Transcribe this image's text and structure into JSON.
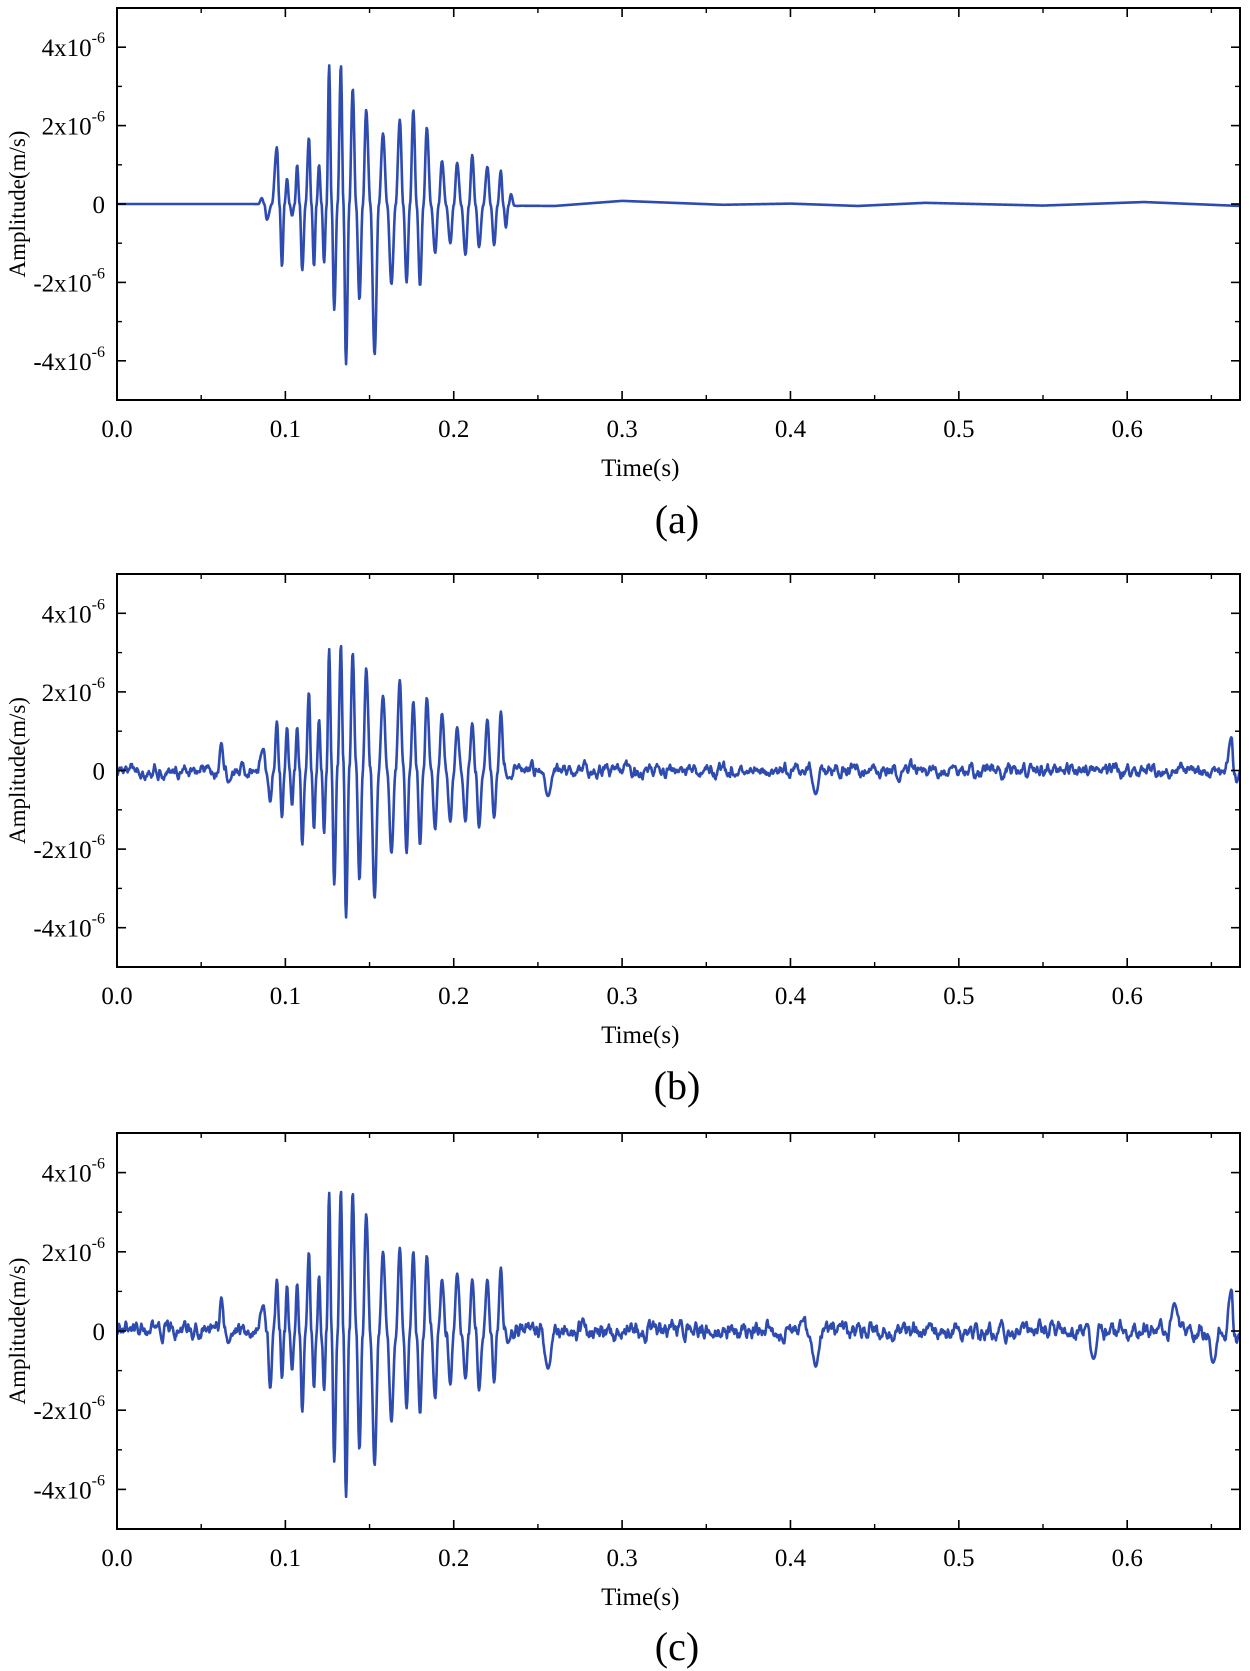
{
  "colors": {
    "line": "#2e4bb0",
    "axis": "#000000",
    "background": "#ffffff"
  },
  "chart_data": [
    {
      "type": "line",
      "panel_label": "(a)",
      "title": "",
      "xlabel": "Time(s)",
      "ylabel": "Amplitude(m/s)",
      "xlim": [
        0.0,
        0.667
      ],
      "ylim": [
        -5e-06,
        5e-06
      ],
      "x_ticks": [
        0.0,
        0.1,
        0.2,
        0.3,
        0.4,
        0.5,
        0.6
      ],
      "x_tick_labels": [
        "0.0",
        "0.1",
        "0.2",
        "0.3",
        "0.4",
        "0.5",
        "0.6"
      ],
      "y_ticks": [
        4e-06,
        2e-06,
        0,
        -2e-06,
        -4e-06
      ],
      "y_tick_labels": [
        {
          "mantissa": "4x10",
          "exponent": "-6"
        },
        {
          "mantissa": "2x10",
          "exponent": "-6"
        },
        {
          "mantissa": "0",
          "exponent": ""
        },
        {
          "mantissa": "-2x10",
          "exponent": "-6"
        },
        {
          "mantissa": "-4x10",
          "exponent": "-6"
        }
      ],
      "grid": false,
      "series": [
        {
          "name": "signal",
          "description": "Clean seismic wave burst between ~0.088 s and ~0.235 s, flat near zero elsewhere",
          "peaks": [
            {
              "t": 0.086,
              "v": 1.5e-07
            },
            {
              "t": 0.089,
              "v": -4e-07
            },
            {
              "t": 0.095,
              "v": 1.45e-06
            },
            {
              "t": 0.098,
              "v": -1.6e-06
            },
            {
              "t": 0.101,
              "v": 6.5e-07
            },
            {
              "t": 0.104,
              "v": -3e-07
            },
            {
              "t": 0.107,
              "v": 1e-06
            },
            {
              "t": 0.11,
              "v": -1.7e-06
            },
            {
              "t": 0.114,
              "v": 1.7e-06
            },
            {
              "t": 0.117,
              "v": -1.6e-06
            },
            {
              "t": 0.12,
              "v": 1e-06
            },
            {
              "t": 0.123,
              "v": -1.5e-06
            },
            {
              "t": 0.126,
              "v": 3.55e-06
            },
            {
              "t": 0.129,
              "v": -2.7e-06
            },
            {
              "t": 0.133,
              "v": 3.55e-06
            },
            {
              "t": 0.136,
              "v": -4.1e-06
            },
            {
              "t": 0.14,
              "v": 2.95e-06
            },
            {
              "t": 0.144,
              "v": -2.45e-06
            },
            {
              "t": 0.148,
              "v": 2.4e-06
            },
            {
              "t": 0.153,
              "v": -3.85e-06
            },
            {
              "t": 0.158,
              "v": 1.8e-06
            },
            {
              "t": 0.163,
              "v": -2.05e-06
            },
            {
              "t": 0.168,
              "v": 2.15e-06
            },
            {
              "t": 0.172,
              "v": -2e-06
            },
            {
              "t": 0.176,
              "v": 2.4e-06
            },
            {
              "t": 0.18,
              "v": -2.1e-06
            },
            {
              "t": 0.184,
              "v": 1.95e-06
            },
            {
              "t": 0.189,
              "v": -1.25e-06
            },
            {
              "t": 0.193,
              "v": 1.1e-06
            },
            {
              "t": 0.198,
              "v": -1e-06
            },
            {
              "t": 0.202,
              "v": 1.05e-06
            },
            {
              "t": 0.207,
              "v": -1.3e-06
            },
            {
              "t": 0.211,
              "v": 1.25e-06
            },
            {
              "t": 0.215,
              "v": -1.1e-06
            },
            {
              "t": 0.22,
              "v": 9.5e-07
            },
            {
              "t": 0.224,
              "v": -1.05e-06
            },
            {
              "t": 0.228,
              "v": 8.5e-07
            },
            {
              "t": 0.231,
              "v": -6e-07
            },
            {
              "t": 0.234,
              "v": 2.5e-07
            },
            {
              "t": 0.238,
              "v": -5e-08
            }
          ],
          "baseline": [
            {
              "t": 0.0,
              "v": 0
            },
            {
              "t": 0.08,
              "v": 0
            },
            {
              "t": 0.26,
              "v": -5e-08
            },
            {
              "t": 0.3,
              "v": 8e-08
            },
            {
              "t": 0.36,
              "v": -2e-08
            },
            {
              "t": 0.4,
              "v": 1e-08
            },
            {
              "t": 0.44,
              "v": -5e-08
            },
            {
              "t": 0.48,
              "v": 3e-08
            },
            {
              "t": 0.55,
              "v": -4e-08
            },
            {
              "t": 0.61,
              "v": 5e-08
            },
            {
              "t": 0.667,
              "v": -5e-08
            }
          ],
          "noise_std": 0
        }
      ]
    },
    {
      "type": "line",
      "panel_label": "(b)",
      "title": "",
      "xlabel": "Time(s)",
      "ylabel": "Amplitude(m/s)",
      "xlim": [
        0.0,
        0.667
      ],
      "ylim": [
        -5e-06,
        5e-06
      ],
      "x_ticks": [
        0.0,
        0.1,
        0.2,
        0.3,
        0.4,
        0.5,
        0.6
      ],
      "x_tick_labels": [
        "0.0",
        "0.1",
        "0.2",
        "0.3",
        "0.4",
        "0.5",
        "0.6"
      ],
      "y_ticks": [
        4e-06,
        2e-06,
        0,
        -2e-06,
        -4e-06
      ],
      "y_tick_labels": [
        {
          "mantissa": "4x10",
          "exponent": "-6"
        },
        {
          "mantissa": "2x10",
          "exponent": "-6"
        },
        {
          "mantissa": "0",
          "exponent": ""
        },
        {
          "mantissa": "-2x10",
          "exponent": "-6"
        },
        {
          "mantissa": "-4x10",
          "exponent": "-6"
        }
      ],
      "grid": false,
      "series": [
        {
          "name": "signal",
          "description": "Wave burst with moderate background noise (~±0.3e-6) across the record",
          "peaks": [
            {
              "t": 0.062,
              "v": 7e-07
            },
            {
              "t": 0.066,
              "v": -3e-07
            },
            {
              "t": 0.087,
              "v": 5.5e-07
            },
            {
              "t": 0.091,
              "v": -8e-07
            },
            {
              "t": 0.095,
              "v": 1.25e-06
            },
            {
              "t": 0.098,
              "v": -1.2e-06
            },
            {
              "t": 0.101,
              "v": 1.1e-06
            },
            {
              "t": 0.104,
              "v": -9e-07
            },
            {
              "t": 0.107,
              "v": 1.1e-06
            },
            {
              "t": 0.11,
              "v": -1.9e-06
            },
            {
              "t": 0.114,
              "v": 2e-06
            },
            {
              "t": 0.117,
              "v": -1.5e-06
            },
            {
              "t": 0.12,
              "v": 1.3e-06
            },
            {
              "t": 0.123,
              "v": -1.6e-06
            },
            {
              "t": 0.126,
              "v": 3.1e-06
            },
            {
              "t": 0.129,
              "v": -2.9e-06
            },
            {
              "t": 0.133,
              "v": 3.2e-06
            },
            {
              "t": 0.136,
              "v": -3.75e-06
            },
            {
              "t": 0.14,
              "v": 3e-06
            },
            {
              "t": 0.144,
              "v": -2.8e-06
            },
            {
              "t": 0.148,
              "v": 2.6e-06
            },
            {
              "t": 0.153,
              "v": -3.25e-06
            },
            {
              "t": 0.158,
              "v": 1.9e-06
            },
            {
              "t": 0.163,
              "v": -2.1e-06
            },
            {
              "t": 0.168,
              "v": 2.3e-06
            },
            {
              "t": 0.172,
              "v": -2.1e-06
            },
            {
              "t": 0.176,
              "v": 1.75e-06
            },
            {
              "t": 0.18,
              "v": -1.9e-06
            },
            {
              "t": 0.184,
              "v": 1.85e-06
            },
            {
              "t": 0.189,
              "v": -1.5e-06
            },
            {
              "t": 0.193,
              "v": 1.45e-06
            },
            {
              "t": 0.198,
              "v": -1.3e-06
            },
            {
              "t": 0.202,
              "v": 1.1e-06
            },
            {
              "t": 0.207,
              "v": -1.3e-06
            },
            {
              "t": 0.211,
              "v": 1.2e-06
            },
            {
              "t": 0.215,
              "v": -1.45e-06
            },
            {
              "t": 0.22,
              "v": 1.3e-06
            },
            {
              "t": 0.224,
              "v": -1.2e-06
            },
            {
              "t": 0.228,
              "v": 1.5e-06
            },
            {
              "t": 0.232,
              "v": -2e-07
            },
            {
              "t": 0.256,
              "v": -6.5e-07
            },
            {
              "t": 0.415,
              "v": -6e-07
            },
            {
              "t": 0.662,
              "v": 8.5e-07
            },
            {
              "t": 0.665,
              "v": -3e-07
            }
          ],
          "baseline": [
            {
              "t": 0.0,
              "v": 0
            },
            {
              "t": 0.667,
              "v": 0
            }
          ],
          "noise_std": 1.7e-07
        }
      ]
    },
    {
      "type": "line",
      "panel_label": "(c)",
      "title": "",
      "xlabel": "Time(s)",
      "ylabel": "Amplitude(m/s)",
      "xlim": [
        0.0,
        0.667
      ],
      "ylim": [
        -5e-06,
        5e-06
      ],
      "x_ticks": [
        0.0,
        0.1,
        0.2,
        0.3,
        0.4,
        0.5,
        0.6
      ],
      "x_tick_labels": [
        "0.0",
        "0.1",
        "0.2",
        "0.3",
        "0.4",
        "0.5",
        "0.6"
      ],
      "y_ticks": [
        4e-06,
        2e-06,
        0,
        -2e-06,
        -4e-06
      ],
      "y_tick_labels": [
        {
          "mantissa": "4x10",
          "exponent": "-6"
        },
        {
          "mantissa": "2x10",
          "exponent": "-6"
        },
        {
          "mantissa": "0",
          "exponent": ""
        },
        {
          "mantissa": "-2x10",
          "exponent": "-6"
        },
        {
          "mantissa": "-4x10",
          "exponent": "-6"
        }
      ],
      "grid": false,
      "series": [
        {
          "name": "signal",
          "description": "Wave burst with stronger background noise (~±0.4e-6) across the record",
          "peaks": [
            {
              "t": 0.062,
              "v": 8.5e-07
            },
            {
              "t": 0.066,
              "v": -3e-07
            },
            {
              "t": 0.087,
              "v": 6.5e-07
            },
            {
              "t": 0.091,
              "v": -1.45e-06
            },
            {
              "t": 0.095,
              "v": 1.3e-06
            },
            {
              "t": 0.098,
              "v": -1.2e-06
            },
            {
              "t": 0.101,
              "v": 1.15e-06
            },
            {
              "t": 0.104,
              "v": -1e-06
            },
            {
              "t": 0.107,
              "v": 1.2e-06
            },
            {
              "t": 0.11,
              "v": -2.05e-06
            },
            {
              "t": 0.114,
              "v": 2e-06
            },
            {
              "t": 0.117,
              "v": -1.45e-06
            },
            {
              "t": 0.12,
              "v": 1.4e-06
            },
            {
              "t": 0.123,
              "v": -1.5e-06
            },
            {
              "t": 0.126,
              "v": 3.5e-06
            },
            {
              "t": 0.129,
              "v": -3.3e-06
            },
            {
              "t": 0.133,
              "v": 3.55e-06
            },
            {
              "t": 0.136,
              "v": -4.2e-06
            },
            {
              "t": 0.14,
              "v": 3.5e-06
            },
            {
              "t": 0.144,
              "v": -3e-06
            },
            {
              "t": 0.148,
              "v": 2.95e-06
            },
            {
              "t": 0.153,
              "v": -3.4e-06
            },
            {
              "t": 0.158,
              "v": 2e-06
            },
            {
              "t": 0.163,
              "v": -2.3e-06
            },
            {
              "t": 0.168,
              "v": 2.1e-06
            },
            {
              "t": 0.172,
              "v": -1.95e-06
            },
            {
              "t": 0.176,
              "v": 2e-06
            },
            {
              "t": 0.18,
              "v": -2.1e-06
            },
            {
              "t": 0.184,
              "v": 1.9e-06
            },
            {
              "t": 0.189,
              "v": -1.7e-06
            },
            {
              "t": 0.193,
              "v": 1.3e-06
            },
            {
              "t": 0.198,
              "v": -1.35e-06
            },
            {
              "t": 0.202,
              "v": 1.45e-06
            },
            {
              "t": 0.207,
              "v": -1.2e-06
            },
            {
              "t": 0.211,
              "v": 1.3e-06
            },
            {
              "t": 0.215,
              "v": -1.5e-06
            },
            {
              "t": 0.22,
              "v": 1.3e-06
            },
            {
              "t": 0.224,
              "v": -1.3e-06
            },
            {
              "t": 0.228,
              "v": 1.6e-06
            },
            {
              "t": 0.232,
              "v": -3e-07
            },
            {
              "t": 0.256,
              "v": -9.5e-07
            },
            {
              "t": 0.415,
              "v": -9e-07
            },
            {
              "t": 0.58,
              "v": -7e-07
            },
            {
              "t": 0.628,
              "v": 7e-07
            },
            {
              "t": 0.651,
              "v": -8e-07
            },
            {
              "t": 0.662,
              "v": 1.05e-06
            },
            {
              "t": 0.665,
              "v": -3e-07
            }
          ],
          "baseline": [
            {
              "t": 0.0,
              "v": 0
            },
            {
              "t": 0.667,
              "v": 0
            }
          ],
          "noise_std": 2.2e-07
        }
      ]
    }
  ]
}
